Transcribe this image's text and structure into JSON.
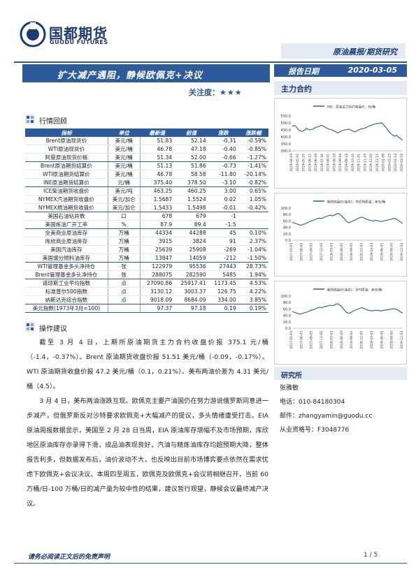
{
  "header": {
    "logo_cn": "国都期货",
    "logo_en": "GUODU FUTURES",
    "category": "原油晨报/期货研究",
    "title": "扩大减产遇阻，静候欧佩克+决议",
    "report_date_label": "报告日期",
    "report_date": "2020-03-05",
    "focus_label": "关注度：",
    "focus_stars": "★★★",
    "sidebar_head": "主力合约"
  },
  "market": {
    "section_title": "行情回顾",
    "columns": [
      "指标",
      "单位",
      "最新值",
      "前值",
      "涨跌",
      "涨跌幅"
    ],
    "rows": [
      [
        "Brent原油现货价",
        "美元/桶",
        "51.83",
        "52.14",
        "-0.31",
        "-0.59%"
      ],
      [
        "WTI原油现货价",
        "美元/桶",
        "46.78",
        "47.18",
        "-0.40",
        "-0.85%"
      ],
      [
        "阿曼原油现货价格",
        "美元/桶",
        "51.34",
        "52.00",
        "-0.66",
        "-1.27%"
      ],
      [
        "Brent原油期货结算价",
        "美元/桶",
        "51.13",
        "51.86",
        "-0.73",
        "-1.41%"
      ],
      [
        "WTI原油期货结算价",
        "美元/桶",
        "46.78",
        "58.58",
        "-11.80",
        "-20.14%"
      ],
      [
        "INE原油期货结算价",
        "元/桶",
        "375.40",
        "378.50",
        "-3.10",
        "-0.82%"
      ],
      [
        "ICE柴油期货收盘价",
        "美元/吨",
        "463.25",
        "460.25",
        "3.00",
        "0.65%"
      ],
      [
        "NYMEX汽油期货收盘价",
        "美元/加仑",
        "1.5687",
        "1.5524",
        "0.02",
        "1.05%"
      ],
      [
        "NYMEX燃油期货收盘价",
        "美元/加仑",
        "1.5433",
        "1.5498",
        "-0.01",
        "-0.42%"
      ],
      [
        "美国石油钻井数",
        "口",
        "678",
        "679",
        "-1",
        ""
      ],
      [
        "美国炼油厂开工率",
        "%",
        "87.9",
        "89.4",
        "-1.5",
        ""
      ],
      [
        "全美商业原油库存",
        "万桶",
        "44334",
        "44288",
        "45",
        "0.10%"
      ],
      [
        "库欣商业原油库存",
        "万桶",
        "3915",
        "3824",
        "91",
        "2.37%"
      ],
      [
        "美国汽油库存",
        "万桶",
        "25639",
        "25908",
        "-269",
        "-1.04%"
      ],
      [
        "美国馏分燃料油库存",
        "万桶",
        "13847",
        "14059",
        "-212",
        "-1.50%"
      ],
      [
        "WTI管理基金多头净持仓",
        "张",
        "122979",
        "95536",
        "27443",
        "28.73%"
      ],
      [
        "Brent管理基金多头净持仓",
        "张",
        "288075",
        "282590",
        "5485",
        "1.94%"
      ],
      [
        "道琼斯工业平均指数",
        "点",
        "27090.86",
        "25917.41",
        "1173.45",
        "4.53%"
      ],
      [
        "标准普尔500指数",
        "点",
        "3130.12",
        "3003.37",
        "126.75",
        "4.22%"
      ],
      [
        "纳斯达克综合指数",
        "点",
        "9018.09",
        "8684.09",
        "334.00",
        "3.85%"
      ],
      [
        "美元指数(1973年3月=100)",
        "",
        "97.37",
        "97.18",
        "0.19",
        "0.19%"
      ]
    ]
  },
  "advice": {
    "section_title": "操作建议",
    "p1": "截至 3 月 4 日，上期所原油期货主力合约收盘价报 375.1 元/桶（-1.4，-0.37%）。Brent 原油期货收盘价报 51.51 美元/桶（-0.09，-0.17%）。WTI 原油期货收盘价报 47.2 美元/桶（0.1，0.21%）。美布两油价差为 4.31 美元/桶（4.5）。",
    "p2": "3 月 4 日，美布两油涨跌互现。欧佩克主要产油国仍在努力游说俄罗斯同意进一步减产，但俄罗斯反对沙特要求欧佩克+大幅减产的提议，多头情绪遭受打击。EIA 原油周报数据显示，美国至 2 月 28 日当周，EIA 原油库存增幅不及市场预期，库欣地区原油库存亦录得下滑，成品油表现良好，汽油与精炼油库存均超预期大降，整体报告利多，但数据发布后，油价波动不大，也反映出目前市场博弈要点依然在需求忧虑下欧佩克+会议决议。本周四至周五，欧佩克及欧佩克+会议将相继召开，当前 60 万桶/日-100 万桶/日的减产量为较中性的结果，建议暂行观望，静候会议最终减产决议。"
  },
  "chart_data": [
    {
      "type": "line",
      "title": "",
      "legend": "INE：原油主力合约收盘价：元/桶",
      "ylim": [
        300,
        550
      ],
      "yticks": [
        "550.0",
        "500.0",
        "450.0",
        "400.0",
        "350.0",
        "300.0"
      ],
      "x_labels": [
        "2019-04-19",
        "2019-05-07",
        "2019-05-23",
        "2019-06-12",
        "2019-06-28",
        "2019-07-16",
        "2019-08-01",
        "2019-08-19",
        "2019-09-04",
        "2019-09-24",
        "2019-10-16",
        "2019-11-01",
        "2019-11-19",
        "2019-12-05",
        "2019-12-23",
        "2020-01-09",
        "2020-01-23",
        "2020-02-14",
        "2020-03-03"
      ],
      "values": [
        474,
        482,
        478,
        466,
        450,
        445,
        440,
        442,
        448,
        462,
        455,
        450,
        452,
        455,
        460,
        468,
        470,
        474,
        478,
        482,
        477,
        470,
        464,
        458,
        455,
        452,
        448,
        440,
        436,
        430,
        432,
        438,
        444,
        448,
        450,
        452,
        456,
        452,
        448,
        442,
        436,
        440,
        446,
        452,
        456,
        458,
        460,
        464,
        470,
        476,
        480,
        484,
        488,
        492,
        494,
        496,
        498,
        500,
        496,
        484,
        470,
        455,
        440,
        428,
        418,
        410,
        405,
        412,
        400,
        392,
        385,
        375
      ]
    },
    {
      "type": "line",
      "legend": "期货收盘价(连续)：布伦特原油：美元/桶",
      "ylim": [
        0,
        100
      ],
      "yticks": [
        "100.0",
        "80.0",
        "60.0",
        "40.0",
        "20.0",
        "0.0"
      ],
      "x_labels": [
        "2017-03-03",
        "2017-06-03",
        "2017-09-03",
        "2017-12-03",
        "2018-03-03",
        "2018-06-03",
        "2018-09-03",
        "2018-12-03",
        "2019-03-03",
        "2019-06-03",
        "2019-09-03",
        "2019-12-03"
      ],
      "values": [
        55,
        53,
        50,
        47,
        49,
        52,
        56,
        60,
        63,
        66,
        69,
        68,
        72,
        75,
        78,
        76,
        80,
        84,
        78,
        70,
        60,
        54,
        58,
        62,
        66,
        70,
        72,
        68,
        64,
        62,
        60,
        62,
        60,
        58,
        60,
        62,
        64,
        66,
        68,
        64,
        58,
        52
      ]
    },
    {
      "type": "line",
      "legend": "期货收盘价(连续)：WTI原油：美元/桶",
      "ylim": [
        0,
        100
      ],
      "yticks": [
        "100.0",
        "80.0",
        "60.0",
        "40.0",
        "20.0",
        "0.0"
      ],
      "x_labels": [
        "2017-03-03",
        "2017-06-03",
        "2017-09-03",
        "2017-12-03",
        "2018-03-03",
        "2018-06-03",
        "2018-09-03",
        "2018-12-03",
        "2019-03-03",
        "2019-06-03",
        "2019-09-03",
        "2019-12-03"
      ],
      "values": [
        52,
        49,
        46,
        44,
        47,
        49,
        52,
        56,
        58,
        62,
        65,
        64,
        67,
        69,
        72,
        70,
        74,
        76,
        70,
        60,
        50,
        46,
        50,
        55,
        58,
        62,
        64,
        60,
        56,
        55,
        54,
        56,
        55,
        54,
        56,
        57,
        58,
        60,
        61,
        58,
        52,
        47
      ]
    }
  ],
  "researcher": {
    "title": "研究所",
    "name": "张雅敏",
    "phone": "电话：010-84180304",
    "email": "邮件：zhangyamin@guodu.cc",
    "license": "从业资格号：F3048776"
  },
  "footer": {
    "disclaimer": "请务必阅读正文后的免责声明",
    "page": "1 / 5"
  }
}
